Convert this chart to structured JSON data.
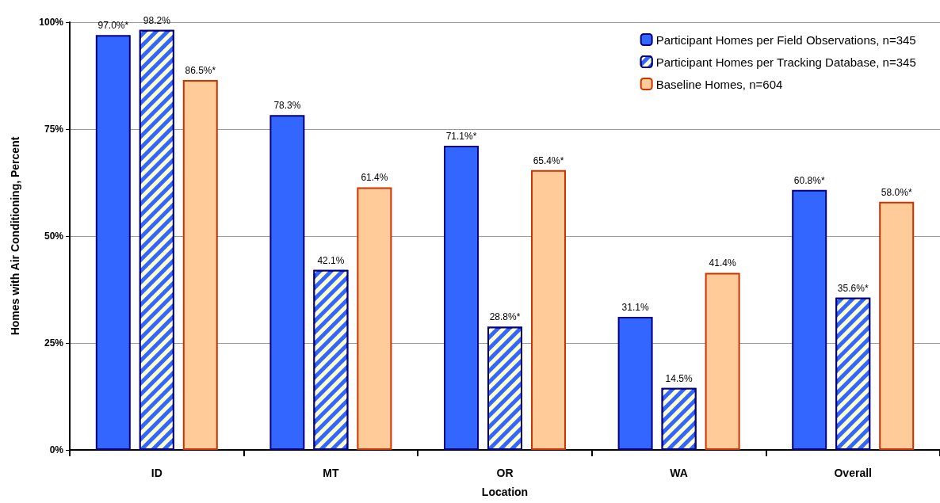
{
  "chart_data": {
    "type": "bar",
    "xlabel": "Location",
    "ylabel": "Homes with Air Conditioning, Percent",
    "categories": [
      "ID",
      "MT",
      "OR",
      "WA",
      "Overall"
    ],
    "series": [
      {
        "name": "Participant Homes per Field Observations, n=345",
        "color": "#3366ff",
        "values": [
          97.0,
          78.3,
          71.1,
          31.1,
          60.8
        ],
        "value_labels": [
          "97.0%*",
          "78.3%",
          "71.1%*",
          "31.1%",
          "60.8%*"
        ]
      },
      {
        "name": "Participant Homes per Tracking Database, n=345",
        "color": "#3366ff",
        "values": [
          98.2,
          42.1,
          28.8,
          14.5,
          35.6
        ],
        "value_labels": [
          "98.2%",
          "42.1%",
          "28.8%*",
          "14.5%",
          "35.6%*"
        ]
      },
      {
        "name": "Baseline Homes, n=604",
        "color": "#ffcc99",
        "values": [
          86.5,
          61.4,
          65.4,
          41.4,
          58.0
        ],
        "value_labels": [
          "86.5%*",
          "61.4%",
          "65.4%*",
          "41.4%",
          "58.0%*"
        ]
      }
    ],
    "ylim": [
      0,
      100
    ],
    "yticks": [
      {
        "value": 0,
        "label": "0%"
      },
      {
        "value": 25,
        "label": "25%"
      },
      {
        "value": 50,
        "label": "50%"
      },
      {
        "value": 75,
        "label": "75%"
      },
      {
        "value": 100,
        "label": "100%"
      }
    ],
    "grid": "y",
    "legend": "top right"
  }
}
